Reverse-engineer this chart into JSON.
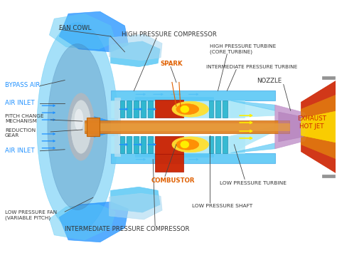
{
  "bg_color": "#ffffff",
  "labels": {
    "fan_cowl": "FAN COWL",
    "bypass_air": "BYPASS AIR",
    "air_inlet_top": "AIR INLET",
    "pitch_change": "PITCH CHANGE\nMECHANISM",
    "reduction_gear": "REDUCTION\nGEAR",
    "air_inlet_bot": "AIR INLET",
    "low_pressure_fan": "LOW PRESSURE FAN\n(VARIABLE PITCH)",
    "high_pressure_compressor": "HIGH PRESSURE COMPRESSOR",
    "spark": "SPARK",
    "high_pressure_turbine": "HIGH PRESSURE TURBINE\n(CORE TURBINE)",
    "intermediate_pressure_turbine": "INTERMEDIATE PRESSURE TURBINE",
    "nozzle": "NOZZLE",
    "exhaust_hot_jet": "EXHAUST\nHOT JET",
    "combustor": "COMBUSTOR",
    "low_pressure_turbine": "LOW PRESSURE TURBINE",
    "low_pressure_shaft": "LOW PRESSURE SHAFT",
    "intermediate_pressure_compressor": "INTERMEDIATE PRESSURE COMPRESSOR"
  },
  "colors": {
    "sky_blue": "#87ceeb",
    "light_blue": "#5bc8f5",
    "mid_blue": "#1e90ff",
    "dark_blue": "#1a6aaa",
    "steel_blue": "#4682b4",
    "cyan_light": "#aee8f8",
    "teal": "#20b2cc",
    "orange_shaft": "#e08020",
    "orange_hot": "#e07810",
    "red_hot": "#cc2200",
    "red_chamber": "#cc2200",
    "yellow_flame": "#ffe030",
    "orange_flame": "#ff8800",
    "gray_silver": "#b0b8c0",
    "gray_dark": "#808890",
    "purple_nozzle": "#c090c8",
    "white": "#ffffff",
    "text_dark": "#333333",
    "text_blue": "#1e90ff",
    "text_orange": "#e06000",
    "text_red": "#cc2200"
  }
}
